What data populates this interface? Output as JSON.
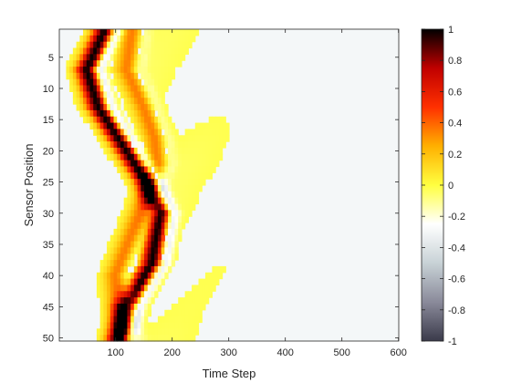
{
  "chart_data": {
    "type": "heatmap",
    "title": "",
    "xlabel": "Time Step",
    "ylabel": "Sensor Position",
    "xlim": [
      1,
      600
    ],
    "ylim": [
      1,
      50
    ],
    "y_reversed": true,
    "xticks": [
      100,
      200,
      300,
      400,
      500,
      600
    ],
    "yticks": [
      5,
      10,
      15,
      20,
      25,
      30,
      35,
      40,
      45,
      50
    ],
    "colorbar": {
      "clim": [
        -1,
        1
      ],
      "ticks": [
        1,
        0.8,
        0.6,
        0.4,
        0.2,
        0,
        -0.2,
        -0.4,
        -0.6,
        -0.8,
        -1
      ],
      "colormap": [
        "#3a3a4a",
        "#8a8a9a",
        "#c8d2d6",
        "#ffffff",
        "#ffff40",
        "#ffb000",
        "#ff3000",
        "#c00000",
        "#000000"
      ]
    },
    "field_model": {
      "description_values": "signed sensor response in [-1, 1]; a pulse that bounces between positions 1 and 50",
      "wave_1_peak_time_at_pos": [
        [
          1,
          80
        ],
        [
          7,
          50
        ],
        [
          13,
          70
        ],
        [
          20,
          120
        ],
        [
          25,
          155
        ],
        [
          30,
          180
        ],
        [
          38,
          165
        ],
        [
          45,
          120
        ],
        [
          50,
          105
        ]
      ],
      "wave_2_peak_time_at_pos": [
        [
          1,
          130
        ],
        [
          7,
          120
        ],
        [
          13,
          150
        ],
        [
          18,
          170
        ],
        [
          22,
          175
        ],
        [
          26,
          160
        ],
        [
          33,
          130
        ],
        [
          40,
          100
        ],
        [
          45,
          105
        ],
        [
          50,
          120
        ]
      ],
      "wave_1_amplitude": 1.0,
      "wave_2_amplitude": 0.35
    }
  }
}
